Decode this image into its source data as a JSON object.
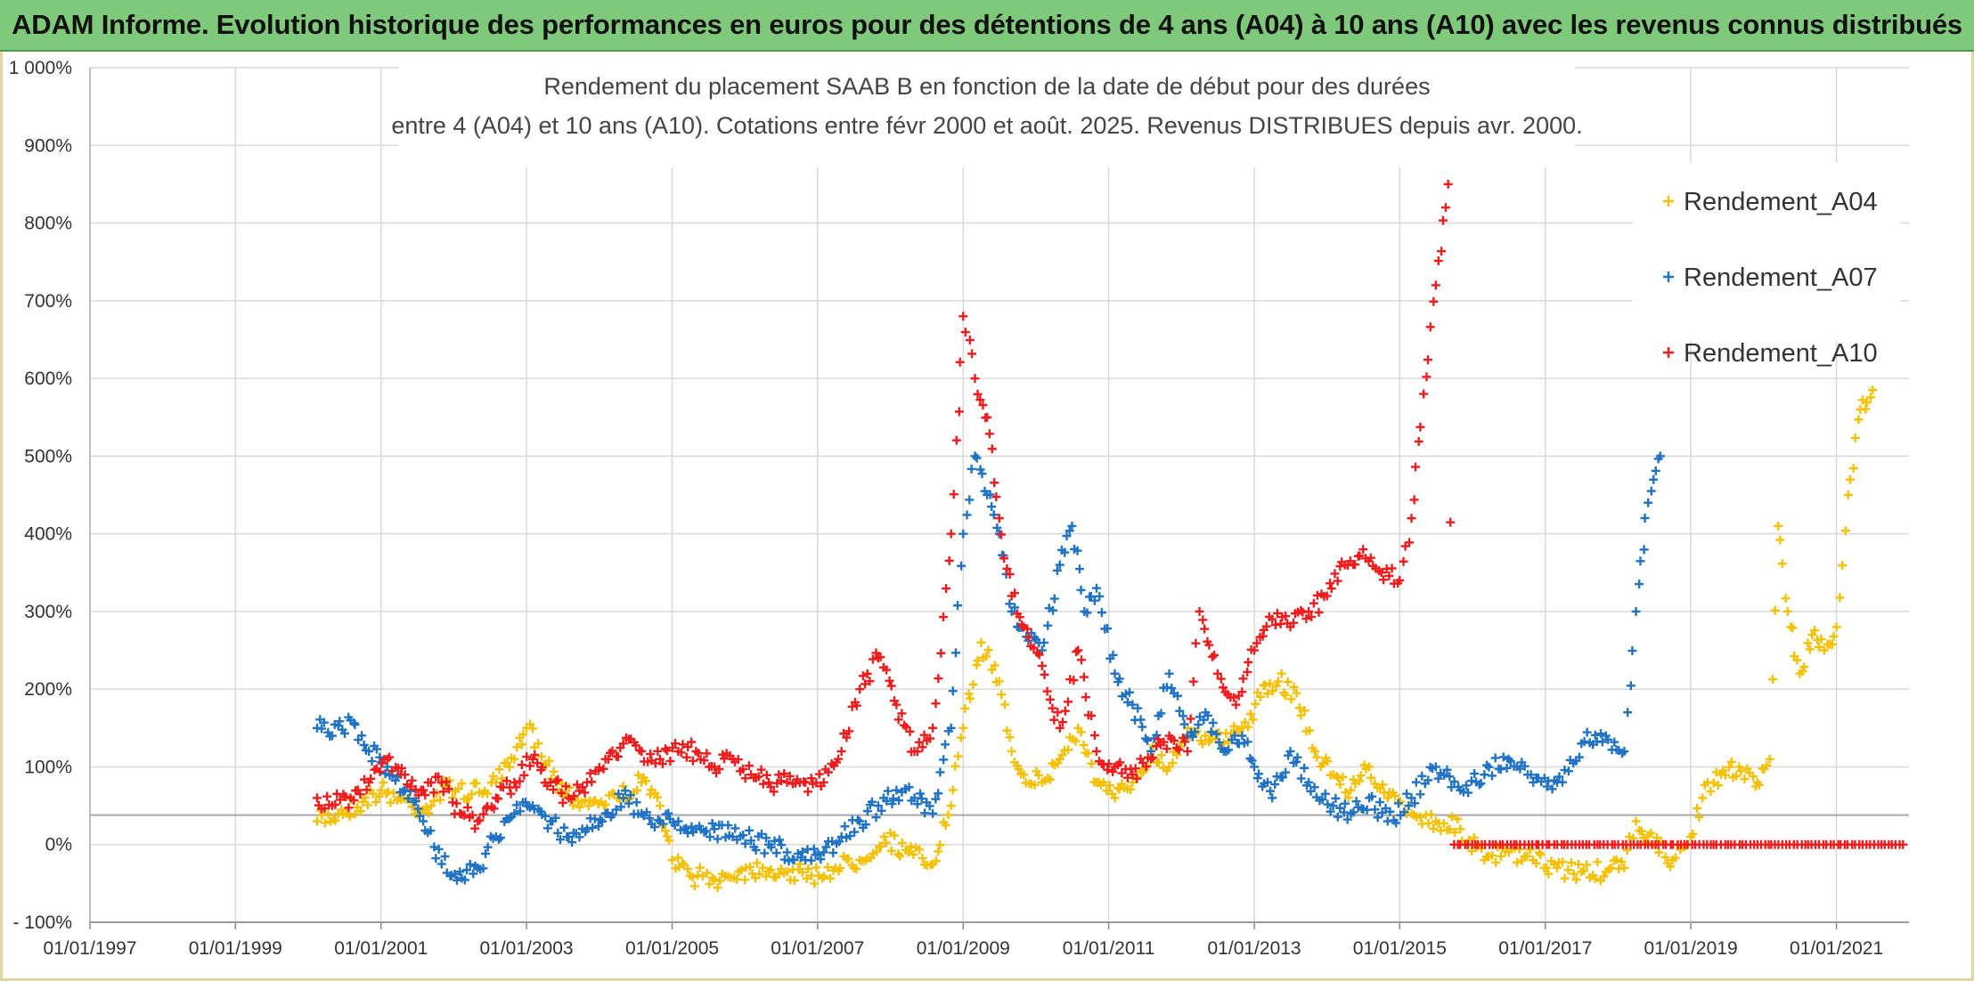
{
  "banner": {
    "title": "ADAM Informe. Evolution historique des performances en euros pour des détentions de 4 ans (A04) à 10 ans (A10) avec les revenus connus distribués"
  },
  "chart_data": {
    "type": "scatter",
    "title_lines": [
      "Rendement du placement SAAB B en fonction de la date de début pour des durées",
      "entre 4 (A04) et 10 ans (A10). Cotations entre févr 2000 et août. 2025. Revenus DISTRIBUES depuis avr. 2000."
    ],
    "xlabel": "",
    "ylabel": "",
    "x_range": [
      "1997-01-01",
      "2021-12-31"
    ],
    "y_range": [
      -100,
      1000
    ],
    "x_ticks": [
      "01/01/1997",
      "01/01/1999",
      "01/01/2001",
      "01/01/2003",
      "01/01/2005",
      "01/01/2007",
      "01/01/2009",
      "01/01/2011",
      "01/01/2013",
      "01/01/2015",
      "01/01/2017",
      "01/01/2019",
      "01/01/2021"
    ],
    "y_ticks": [
      {
        "value": -100,
        "label": "- 100%"
      },
      {
        "value": 0,
        "label": "0%"
      },
      {
        "value": 100,
        "label": "100%"
      },
      {
        "value": 200,
        "label": "200%"
      },
      {
        "value": 300,
        "label": "300%"
      },
      {
        "value": 400,
        "label": "400%"
      },
      {
        "value": 500,
        "label": "500%"
      },
      {
        "value": 600,
        "label": "600%"
      },
      {
        "value": 700,
        "label": "700%"
      },
      {
        "value": 800,
        "label": "800%"
      },
      {
        "value": 900,
        "label": "900%"
      },
      {
        "value": 1000,
        "label": "1 000%"
      }
    ],
    "reference_line_value": 38,
    "grid": true,
    "legend_position": "top-right",
    "series": [
      {
        "name": "Rendement_A04",
        "color": "#f5c000",
        "points": [
          [
            "2000-02-15",
            30
          ],
          [
            "2000-06-01",
            40
          ],
          [
            "2000-10-01",
            55
          ],
          [
            "2001-01-01",
            70
          ],
          [
            "2001-04-01",
            60
          ],
          [
            "2001-08-01",
            45
          ],
          [
            "2001-12-01",
            75
          ],
          [
            "2002-04-01",
            65
          ],
          [
            "2002-08-01",
            80
          ],
          [
            "2002-11-01",
            110
          ],
          [
            "2003-01-01",
            150
          ],
          [
            "2003-03-01",
            130
          ],
          [
            "2003-06-01",
            80
          ],
          [
            "2003-09-01",
            60
          ],
          [
            "2003-12-01",
            55
          ],
          [
            "2004-04-01",
            60
          ],
          [
            "2004-08-01",
            80
          ],
          [
            "2004-11-01",
            50
          ],
          [
            "2005-01-01",
            -20
          ],
          [
            "2005-04-01",
            -40
          ],
          [
            "2005-08-01",
            -45
          ],
          [
            "2005-12-01",
            -35
          ],
          [
            "2006-04-01",
            -30
          ],
          [
            "2006-08-01",
            -35
          ],
          [
            "2006-12-01",
            -40
          ],
          [
            "2007-04-01",
            -30
          ],
          [
            "2007-08-01",
            -20
          ],
          [
            "2007-12-01",
            10
          ],
          [
            "2008-04-01",
            -10
          ],
          [
            "2008-08-01",
            -25
          ],
          [
            "2008-11-01",
            50
          ],
          [
            "2009-01-01",
            150
          ],
          [
            "2009-04-01",
            260
          ],
          [
            "2009-07-01",
            210
          ],
          [
            "2009-09-01",
            120
          ],
          [
            "2009-11-01",
            90
          ],
          [
            "2010-02-01",
            80
          ],
          [
            "2010-05-01",
            110
          ],
          [
            "2010-08-01",
            150
          ],
          [
            "2010-11-01",
            80
          ],
          [
            "2011-02-01",
            60
          ],
          [
            "2011-05-01",
            80
          ],
          [
            "2011-08-01",
            120
          ],
          [
            "2011-11-01",
            100
          ],
          [
            "2012-02-01",
            150
          ],
          [
            "2012-05-01",
            140
          ],
          [
            "2012-08-01",
            130
          ],
          [
            "2012-11-01",
            150
          ],
          [
            "2013-02-01",
            190
          ],
          [
            "2013-05-01",
            210
          ],
          [
            "2013-08-01",
            195
          ],
          [
            "2013-11-01",
            120
          ],
          [
            "2014-02-01",
            90
          ],
          [
            "2014-05-01",
            70
          ],
          [
            "2014-08-01",
            100
          ],
          [
            "2014-11-01",
            60
          ],
          [
            "2015-03-01",
            40
          ],
          [
            "2015-07-01",
            30
          ],
          [
            "2015-11-01",
            20
          ],
          [
            "2016-03-01",
            -20
          ],
          [
            "2016-07-01",
            -10
          ],
          [
            "2016-11-01",
            -20
          ],
          [
            "2017-03-01",
            -30
          ],
          [
            "2017-07-01",
            -35
          ],
          [
            "2017-11-01",
            -35
          ],
          [
            "2018-02-01",
            -30
          ],
          [
            "2018-04-01",
            30
          ],
          [
            "2018-07-01",
            0
          ],
          [
            "2018-10-01",
            -20
          ],
          [
            "2019-01-01",
            10
          ],
          [
            "2019-03-01",
            60
          ],
          [
            "2019-06-01",
            90
          ],
          [
            "2019-09-01",
            100
          ],
          [
            "2019-12-01",
            80
          ],
          [
            "2020-02-01",
            110
          ],
          [
            "2020-03-15",
            410
          ],
          [
            "2020-05-01",
            300
          ],
          [
            "2020-07-01",
            220
          ],
          [
            "2020-09-01",
            270
          ],
          [
            "2020-11-01",
            250
          ],
          [
            "2021-01-01",
            280
          ],
          [
            "2021-03-01",
            450
          ],
          [
            "2021-05-01",
            560
          ],
          [
            "2021-07-01",
            585
          ]
        ]
      },
      {
        "name": "Rendement_A07",
        "color": "#1f72c4",
        "points": [
          [
            "2000-02-15",
            150
          ],
          [
            "2000-05-01",
            140
          ],
          [
            "2000-08-01",
            160
          ],
          [
            "2000-11-01",
            120
          ],
          [
            "2001-02-01",
            100
          ],
          [
            "2001-05-01",
            70
          ],
          [
            "2001-08-01",
            30
          ],
          [
            "2001-11-01",
            -25
          ],
          [
            "2002-02-01",
            -35
          ],
          [
            "2002-05-01",
            -30
          ],
          [
            "2002-08-01",
            10
          ],
          [
            "2002-11-01",
            40
          ],
          [
            "2003-02-01",
            50
          ],
          [
            "2003-05-01",
            30
          ],
          [
            "2003-08-01",
            10
          ],
          [
            "2003-11-01",
            20
          ],
          [
            "2004-02-01",
            40
          ],
          [
            "2004-05-01",
            60
          ],
          [
            "2004-08-01",
            40
          ],
          [
            "2004-11-01",
            30
          ],
          [
            "2005-02-01",
            30
          ],
          [
            "2005-05-01",
            20
          ],
          [
            "2005-08-01",
            20
          ],
          [
            "2005-11-01",
            10
          ],
          [
            "2006-02-01",
            5
          ],
          [
            "2006-05-01",
            0
          ],
          [
            "2006-08-01",
            -10
          ],
          [
            "2006-11-01",
            -20
          ],
          [
            "2007-02-01",
            -10
          ],
          [
            "2007-05-01",
            10
          ],
          [
            "2007-08-01",
            30
          ],
          [
            "2007-11-01",
            50
          ],
          [
            "2008-02-01",
            70
          ],
          [
            "2008-05-01",
            60
          ],
          [
            "2008-08-01",
            40
          ],
          [
            "2008-11-01",
            150
          ],
          [
            "2009-01-01",
            400
          ],
          [
            "2009-03-01",
            500
          ],
          [
            "2009-05-01",
            450
          ],
          [
            "2009-07-01",
            400
          ],
          [
            "2009-09-01",
            300
          ],
          [
            "2009-11-01",
            280
          ],
          [
            "2010-02-01",
            250
          ],
          [
            "2010-05-01",
            360
          ],
          [
            "2010-07-01",
            410
          ],
          [
            "2010-09-01",
            300
          ],
          [
            "2010-11-01",
            330
          ],
          [
            "2011-02-01",
            220
          ],
          [
            "2011-05-01",
            180
          ],
          [
            "2011-08-01",
            120
          ],
          [
            "2011-11-01",
            220
          ],
          [
            "2012-02-01",
            140
          ],
          [
            "2012-05-01",
            170
          ],
          [
            "2012-08-01",
            120
          ],
          [
            "2012-11-01",
            140
          ],
          [
            "2013-01-01",
            100
          ],
          [
            "2013-04-01",
            60
          ],
          [
            "2013-07-01",
            120
          ],
          [
            "2013-10-01",
            80
          ],
          [
            "2014-02-01",
            50
          ],
          [
            "2014-05-01",
            40
          ],
          [
            "2014-08-01",
            60
          ],
          [
            "2014-11-01",
            30
          ],
          [
            "2015-03-01",
            60
          ],
          [
            "2015-07-01",
            100
          ],
          [
            "2015-11-01",
            70
          ],
          [
            "2016-03-01",
            90
          ],
          [
            "2016-07-01",
            110
          ],
          [
            "2016-11-01",
            80
          ],
          [
            "2017-03-01",
            80
          ],
          [
            "2017-07-01",
            130
          ],
          [
            "2017-11-01",
            140
          ],
          [
            "2018-02-01",
            120
          ],
          [
            "2018-04-01",
            300
          ],
          [
            "2018-06-01",
            440
          ],
          [
            "2018-08-01",
            500
          ]
        ]
      },
      {
        "name": "Rendement_A10",
        "color": "#ee1c1c",
        "points": [
          [
            "2000-02-15",
            60
          ],
          [
            "2000-05-01",
            50
          ],
          [
            "2000-08-01",
            60
          ],
          [
            "2000-11-01",
            80
          ],
          [
            "2001-02-01",
            110
          ],
          [
            "2001-05-01",
            90
          ],
          [
            "2001-08-01",
            70
          ],
          [
            "2001-11-01",
            80
          ],
          [
            "2002-02-01",
            40
          ],
          [
            "2002-05-01",
            30
          ],
          [
            "2002-08-01",
            60
          ],
          [
            "2002-11-01",
            80
          ],
          [
            "2003-02-01",
            110
          ],
          [
            "2003-05-01",
            80
          ],
          [
            "2003-08-01",
            60
          ],
          [
            "2003-11-01",
            80
          ],
          [
            "2004-02-01",
            110
          ],
          [
            "2004-05-01",
            130
          ],
          [
            "2004-08-01",
            120
          ],
          [
            "2004-11-01",
            110
          ],
          [
            "2005-02-01",
            120
          ],
          [
            "2005-05-01",
            120
          ],
          [
            "2005-08-01",
            100
          ],
          [
            "2005-11-01",
            110
          ],
          [
            "2006-02-01",
            90
          ],
          [
            "2006-05-01",
            80
          ],
          [
            "2006-08-01",
            80
          ],
          [
            "2006-11-01",
            80
          ],
          [
            "2007-02-01",
            80
          ],
          [
            "2007-05-01",
            120
          ],
          [
            "2007-08-01",
            200
          ],
          [
            "2007-11-01",
            240
          ],
          [
            "2008-02-01",
            180
          ],
          [
            "2008-05-01",
            120
          ],
          [
            "2008-08-01",
            150
          ],
          [
            "2008-11-01",
            400
          ],
          [
            "2009-01-01",
            680
          ],
          [
            "2009-03-01",
            600
          ],
          [
            "2009-05-01",
            550
          ],
          [
            "2009-07-01",
            420
          ],
          [
            "2009-09-01",
            320
          ],
          [
            "2009-11-01",
            280
          ],
          [
            "2010-02-01",
            230
          ],
          [
            "2010-05-01",
            150
          ],
          [
            "2010-08-01",
            250
          ],
          [
            "2010-11-01",
            120
          ],
          [
            "2011-02-01",
            100
          ],
          [
            "2011-05-01",
            90
          ],
          [
            "2011-08-01",
            110
          ],
          [
            "2011-11-01",
            140
          ],
          [
            "2012-02-01",
            120
          ],
          [
            "2012-04-01",
            300
          ],
          [
            "2012-07-01",
            220
          ],
          [
            "2012-10-01",
            180
          ],
          [
            "2013-01-01",
            250
          ],
          [
            "2013-04-01",
            290
          ],
          [
            "2013-07-01",
            280
          ],
          [
            "2013-10-01",
            300
          ],
          [
            "2014-01-01",
            320
          ],
          [
            "2014-04-01",
            360
          ],
          [
            "2014-07-01",
            380
          ],
          [
            "2014-10-01",
            350
          ],
          [
            "2015-01-01",
            340
          ],
          [
            "2015-03-01",
            420
          ],
          [
            "2015-05-01",
            580
          ],
          [
            "2015-07-01",
            720
          ],
          [
            "2015-09-01",
            850
          ],
          [
            "2015-10-01",
            0
          ],
          [
            "2016-06-01",
            0
          ],
          [
            "2017-06-01",
            0
          ],
          [
            "2018-06-01",
            0
          ],
          [
            "2019-06-01",
            0
          ],
          [
            "2020-06-01",
            0
          ],
          [
            "2021-06-01",
            0
          ],
          [
            "2021-12-01",
            0
          ]
        ]
      }
    ]
  }
}
